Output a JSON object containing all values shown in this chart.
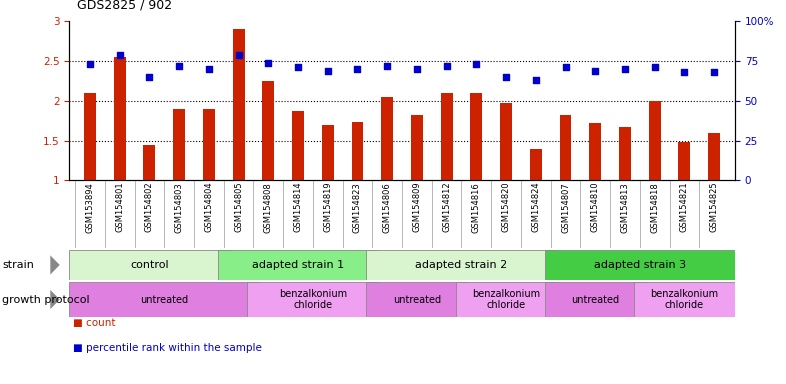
{
  "title": "GDS2825 / 902",
  "samples": [
    "GSM153894",
    "GSM154801",
    "GSM154802",
    "GSM154803",
    "GSM154804",
    "GSM154805",
    "GSM154808",
    "GSM154814",
    "GSM154819",
    "GSM154823",
    "GSM154806",
    "GSM154809",
    "GSM154812",
    "GSM154816",
    "GSM154820",
    "GSM154824",
    "GSM154807",
    "GSM154810",
    "GSM154813",
    "GSM154818",
    "GSM154821",
    "GSM154825"
  ],
  "count_values": [
    2.1,
    2.55,
    1.45,
    1.9,
    1.9,
    2.9,
    2.25,
    1.87,
    1.7,
    1.73,
    2.05,
    1.82,
    2.1,
    2.1,
    1.97,
    1.4,
    1.82,
    1.72,
    1.67,
    2.0,
    1.48,
    1.6
  ],
  "percentile_values": [
    73,
    79,
    65,
    72,
    70,
    79,
    74,
    71,
    69,
    70,
    72,
    70,
    72,
    73,
    65,
    63,
    71,
    69,
    70,
    71,
    68,
    68
  ],
  "strain_groups": [
    {
      "label": "control",
      "start": 0,
      "end": 5,
      "color": "#d8f5d0"
    },
    {
      "label": "adapted strain 1",
      "start": 5,
      "end": 10,
      "color": "#88ee88"
    },
    {
      "label": "adapted strain 2",
      "start": 10,
      "end": 16,
      "color": "#d8f5d0"
    },
    {
      "label": "adapted strain 3",
      "start": 16,
      "end": 22,
      "color": "#44cc44"
    }
  ],
  "growth_groups": [
    {
      "label": "untreated",
      "start": 0,
      "end": 6,
      "color": "#df7fdf"
    },
    {
      "label": "benzalkonium\nchloride",
      "start": 6,
      "end": 10,
      "color": "#f0a0f0"
    },
    {
      "label": "untreated",
      "start": 10,
      "end": 13,
      "color": "#df7fdf"
    },
    {
      "label": "benzalkonium\nchloride",
      "start": 13,
      "end": 16,
      "color": "#f0a0f0"
    },
    {
      "label": "untreated",
      "start": 16,
      "end": 19,
      "color": "#df7fdf"
    },
    {
      "label": "benzalkonium\nchloride",
      "start": 19,
      "end": 22,
      "color": "#f0a0f0"
    }
  ],
  "bar_color": "#cc2200",
  "dot_color": "#0000cc",
  "ylim_left": [
    1.0,
    3.0
  ],
  "ylim_right": [
    0,
    100
  ],
  "yticks_left": [
    1.0,
    1.5,
    2.0,
    2.5,
    3.0
  ],
  "yticks_right": [
    0,
    25,
    50,
    75,
    100
  ],
  "ytick_left_labels": [
    "1",
    "1.5",
    "2",
    "2.5",
    "3"
  ],
  "ytick_right_labels": [
    "0",
    "25",
    "50",
    "75",
    "100%"
  ],
  "hlines": [
    1.5,
    2.0,
    2.5
  ]
}
